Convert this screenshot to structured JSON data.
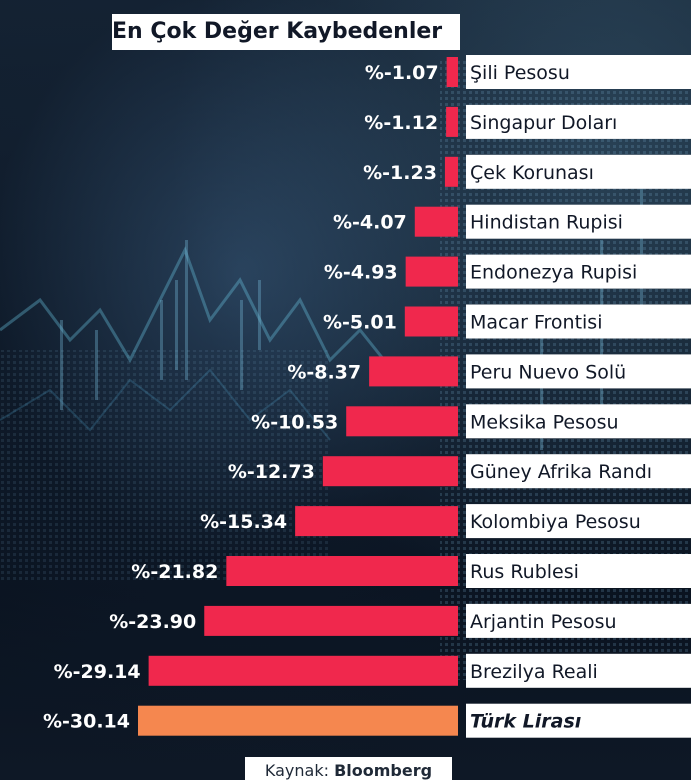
{
  "title": "En Çok Değer Kaybedenler",
  "source": {
    "prefix": "Kaynak:",
    "name": "Bloomberg"
  },
  "colors": {
    "bar": "#f0284d",
    "highlight": "#f5874f",
    "label_bg": "#ffffff",
    "label_text": "#111827",
    "value_text": "#ffffff"
  },
  "chart_data": {
    "type": "bar",
    "orientation": "horizontal",
    "title": "En Çok Değer Kaybedenler",
    "categories": [
      "Şili Pesosu",
      "Singapur Doları",
      "Çek Korunası",
      "Hindistan Rupisi",
      "Endonezya Rupisi",
      "Macar Frontisi",
      "Peru Nuevo Solü",
      "Meksika Pesosu",
      "Güney Afrika Randı",
      "Kolombiya Pesosu",
      "Rus Rublesi",
      "Arjantin Pesosu",
      "Brezilya Reali",
      "Türk Lirası"
    ],
    "values": [
      -1.07,
      -1.12,
      -1.23,
      -4.07,
      -4.93,
      -5.01,
      -8.37,
      -10.53,
      -12.73,
      -15.34,
      -21.82,
      -23.9,
      -29.14,
      -30.14
    ],
    "value_labels": [
      "%-1.07",
      "%-1.12",
      "%-1.23",
      "%-4.07",
      "%-4.93",
      "%-5.01",
      "%-8.37",
      "%-10.53",
      "%-12.73",
      "%-15.34",
      "%-21.82",
      "%-23.90",
      "%-29.14",
      "%-30.14"
    ],
    "highlight_index": 13,
    "xlim": [
      -30.14,
      0
    ],
    "grid": false,
    "legend": "none"
  }
}
